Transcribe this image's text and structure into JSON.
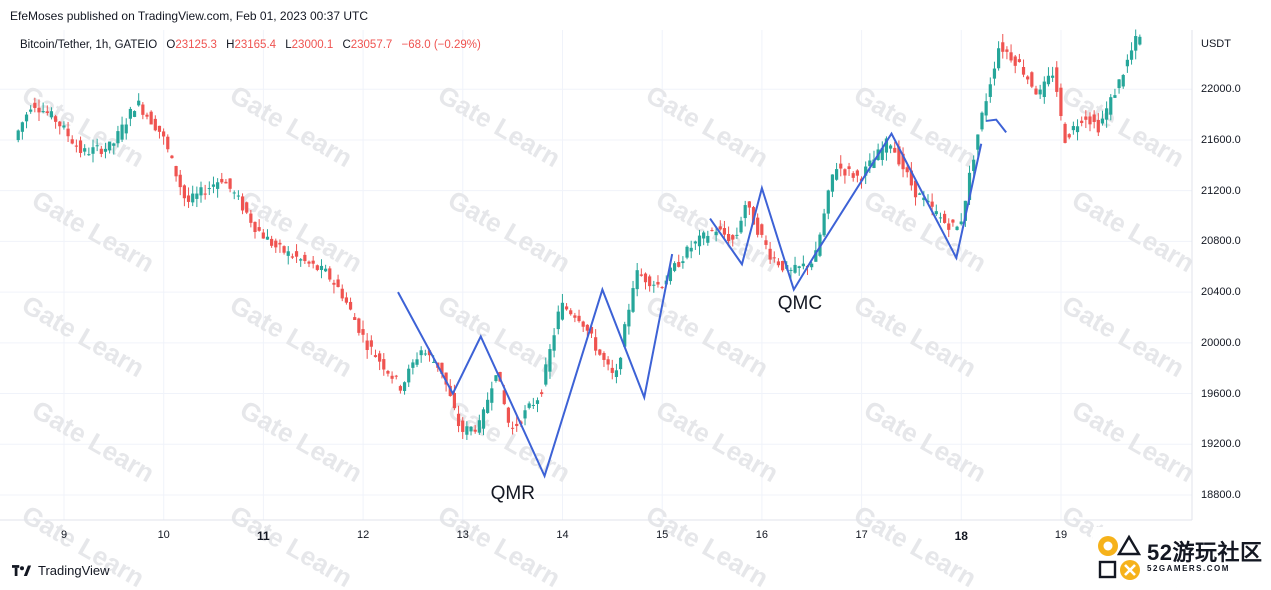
{
  "publish_line": "EfeMoses published on TradingView.com, Feb 01, 2023 00:37 UTC",
  "legend": {
    "symbol": "Bitcoin/Tether, 1h, GATEIO",
    "o_key": "O",
    "o_val": "23125.3",
    "h_key": "H",
    "h_val": "23165.4",
    "l_key": "L",
    "l_val": "23000.1",
    "c_key": "C",
    "c_val": "23057.7",
    "change": "−68.0 (−0.29%)"
  },
  "axis_unit": "USDT",
  "footer": {
    "brand": "TradingView",
    "logo_icon": "tradingview-logo-icon"
  },
  "badge": {
    "big": "52游玩社区",
    "small": "52GAMERS.COM",
    "icon": "playstation-shapes-logo-icon"
  },
  "colors": {
    "bull": "#26a69a",
    "bear": "#ef5350",
    "pattern_line": "#3d62d6",
    "grid": "#f0f3fa",
    "watermark": "#e6e7ea"
  },
  "watermark_text": "Gate Learn",
  "chart_data": {
    "type": "candlestick",
    "title": "Bitcoin/Tether, 1h, GATEIO",
    "xlabel": "",
    "ylabel": "USDT",
    "ylim": [
      18600,
      22450
    ],
    "grid": true,
    "yticks": [
      "22000.0",
      "21600.0",
      "21200.0",
      "20800.0",
      "20400.0",
      "20000.0",
      "19600.0",
      "19200.0",
      "18800.0"
    ],
    "ytick_values": [
      22000,
      21600,
      21200,
      20800,
      20400,
      20000,
      19600,
      19200,
      18800
    ],
    "xticks": [
      {
        "label": "9",
        "day": 9,
        "bold": false
      },
      {
        "label": "10",
        "day": 10,
        "bold": false
      },
      {
        "label": "11",
        "day": 11,
        "bold": true
      },
      {
        "label": "12",
        "day": 12,
        "bold": false
      },
      {
        "label": "13",
        "day": 13,
        "bold": false
      },
      {
        "label": "14",
        "day": 14,
        "bold": false
      },
      {
        "label": "15",
        "day": 15,
        "bold": false
      },
      {
        "label": "16",
        "day": 16,
        "bold": false
      },
      {
        "label": "17",
        "day": 17,
        "bold": false
      },
      {
        "label": "18",
        "day": 18,
        "bold": true
      },
      {
        "label": "19",
        "day": 19,
        "bold": false
      }
    ],
    "x_range_days": [
      8.52,
      19.8
    ],
    "price_path": [
      [
        8.52,
        21600
      ],
      [
        8.7,
        21900
      ],
      [
        8.95,
        21750
      ],
      [
        9.2,
        21500
      ],
      [
        9.5,
        21550
      ],
      [
        9.75,
        21900
      ],
      [
        10.0,
        21650
      ],
      [
        10.25,
        21100
      ],
      [
        10.6,
        21300
      ],
      [
        10.75,
        21150
      ],
      [
        10.95,
        20900
      ],
      [
        11.15,
        20750
      ],
      [
        11.4,
        20650
      ],
      [
        11.65,
        20550
      ],
      [
        11.8,
        20400
      ],
      [
        12.05,
        20000
      ],
      [
        12.4,
        19650
      ],
      [
        12.6,
        19950
      ],
      [
        12.8,
        19800
      ],
      [
        13.0,
        19300
      ],
      [
        13.2,
        19350
      ],
      [
        13.35,
        19800
      ],
      [
        13.5,
        19300
      ],
      [
        13.8,
        19600
      ],
      [
        14.0,
        20300
      ],
      [
        14.2,
        20200
      ],
      [
        14.4,
        19900
      ],
      [
        14.55,
        19700
      ],
      [
        14.75,
        20550
      ],
      [
        15.0,
        20450
      ],
      [
        15.3,
        20750
      ],
      [
        15.55,
        20900
      ],
      [
        15.75,
        20800
      ],
      [
        15.85,
        21100
      ],
      [
        16.1,
        20700
      ],
      [
        16.3,
        20550
      ],
      [
        16.55,
        20650
      ],
      [
        16.75,
        21400
      ],
      [
        17.0,
        21300
      ],
      [
        17.3,
        21600
      ],
      [
        17.55,
        21200
      ],
      [
        17.85,
        20950
      ],
      [
        18.0,
        20900
      ],
      [
        18.2,
        21700
      ],
      [
        18.4,
        22350
      ],
      [
        18.6,
        22200
      ],
      [
        18.8,
        21950
      ],
      [
        18.95,
        22150
      ],
      [
        19.05,
        21600
      ],
      [
        19.25,
        21800
      ],
      [
        19.4,
        21700
      ],
      [
        19.6,
        22050
      ],
      [
        19.78,
        22400
      ]
    ],
    "bias": 0.27,
    "pattern_lines": [
      [
        [
          12.35,
          20400
        ],
        [
          12.9,
          19600
        ],
        [
          13.18,
          20050
        ],
        [
          13.82,
          18950
        ],
        [
          14.4,
          20420
        ],
        [
          14.82,
          19570
        ],
        [
          15.1,
          20700
        ]
      ],
      [
        [
          15.48,
          20980
        ],
        [
          15.8,
          20620
        ],
        [
          16.0,
          21220
        ],
        [
          16.32,
          20420
        ],
        [
          16.52,
          20680
        ],
        [
          17.3,
          21650
        ],
        [
          17.95,
          20670
        ],
        [
          18.2,
          21570
        ]
      ]
    ],
    "pattern_arrows": [
      [
        [
          18.25,
          21750
        ],
        [
          18.35,
          21760
        ],
        [
          18.45,
          21660
        ]
      ]
    ],
    "annotations": [
      {
        "text": "QMR",
        "x": 13.5,
        "y": 18800
      },
      {
        "text": "QMC",
        "x": 16.38,
        "y": 20300
      }
    ]
  }
}
